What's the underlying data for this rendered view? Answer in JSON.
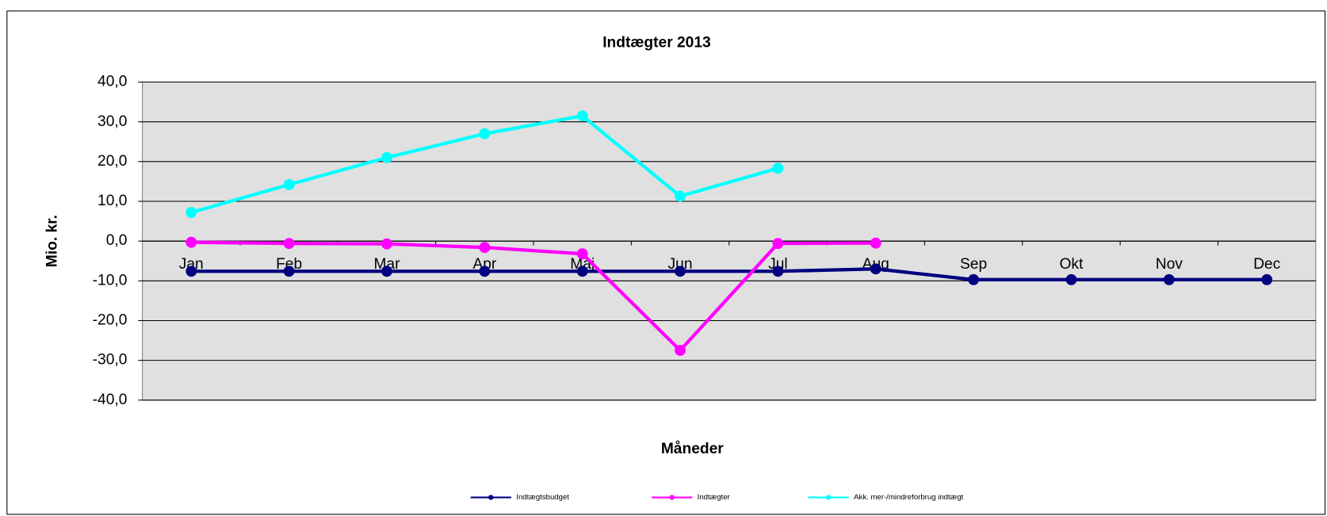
{
  "chart_data": {
    "type": "line",
    "title": "Indtægter 2013",
    "x_label": "Måneder",
    "y_label": "Mio. kr.",
    "categories": [
      "Jan",
      "Feb",
      "Mar",
      "Apr",
      "Maj",
      "Jun",
      "Jul",
      "Aug",
      "Sep",
      "Okt",
      "Nov",
      "Dec"
    ],
    "series": [
      {
        "name": "Indtægtsbudget",
        "color": "#000080",
        "values": [
          -7.6,
          -7.6,
          -7.6,
          -7.6,
          -7.6,
          -7.6,
          -7.6,
          -7.0,
          -9.7,
          -9.7,
          -9.7,
          -9.7
        ]
      },
      {
        "name": "Indtægter",
        "color": "#ff00ff",
        "values": [
          -0.3,
          -0.6,
          -0.7,
          -1.6,
          -3.2,
          -27.5,
          -0.6,
          -0.5,
          null,
          null,
          null,
          null
        ]
      },
      {
        "name": "Akk. mer-/mindreforbrug indtægt",
        "color": "#00ffff",
        "values": [
          7.2,
          14.2,
          21.0,
          27.0,
          31.5,
          11.3,
          18.3,
          null,
          null,
          null,
          null,
          null
        ]
      }
    ],
    "ylim": [
      -40,
      40
    ],
    "yticks": [
      {
        "value": -40,
        "label": "-40,0"
      },
      {
        "value": -30,
        "label": "-30,0"
      },
      {
        "value": -20,
        "label": "-20,0"
      },
      {
        "value": -10,
        "label": "-10,0"
      },
      {
        "value": 0,
        "label": "0,0"
      },
      {
        "value": 10,
        "label": "10,0"
      },
      {
        "value": 20,
        "label": "20,0"
      },
      {
        "value": 30,
        "label": "30,0"
      },
      {
        "value": 40,
        "label": "40,0"
      }
    ],
    "grid": true,
    "legend": "bottom"
  }
}
